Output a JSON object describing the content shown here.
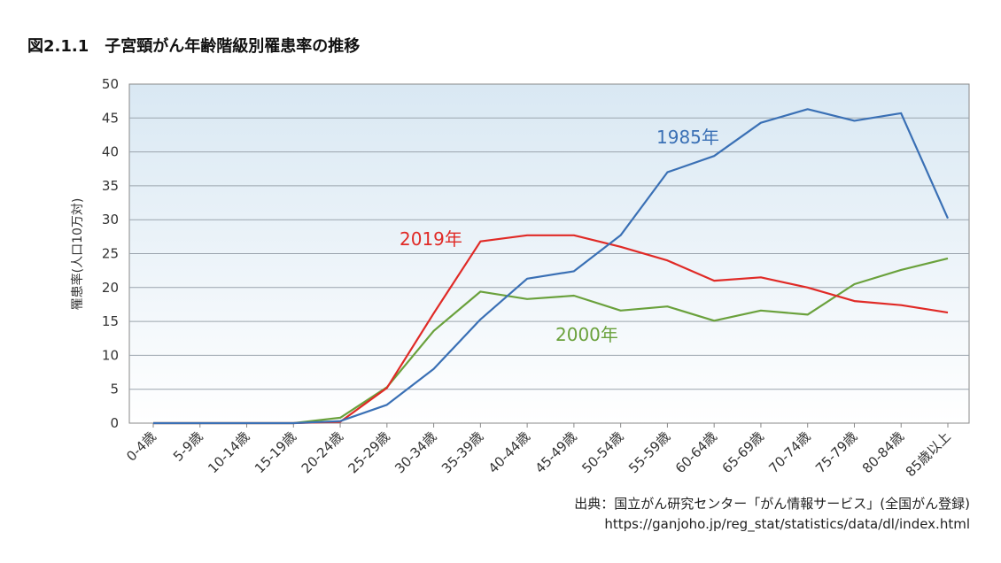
{
  "title": "図2.1.1　子宮頸がん年齢階級別罹患率の推移",
  "source": {
    "line1": "出典：国立がん研究センター「がん情報サービス」(全国がん登録)",
    "line2": "https://ganjoho.jp/reg_stat/statistics/data/dl/index.html"
  },
  "colors": {
    "s1985": "#3a70b5",
    "s2019": "#e02a26",
    "s2000": "#6aa13c",
    "grid": "#9aa4ad",
    "bg_top": "#d9e8f3",
    "bg_bottom": "#ffffff"
  },
  "chart_data": {
    "type": "line",
    "title": "図2.1.1　子宮頸がん年齢階級別罹患率の推移",
    "ylabel": "罹患率(人口10万対)",
    "xlabel": "",
    "ylim": [
      0,
      50
    ],
    "yticks": [
      0,
      5,
      10,
      15,
      20,
      25,
      30,
      35,
      40,
      45,
      50
    ],
    "grid": true,
    "categories": [
      "0-4歳",
      "5-9歳",
      "10-14歳",
      "15-19歳",
      "20-24歳",
      "25-29歳",
      "30-34歳",
      "35-39歳",
      "40-44歳",
      "45-49歳",
      "50-54歳",
      "55-59歳",
      "60-64歳",
      "65-69歳",
      "70-74歳",
      "75-79歳",
      "80-84歳",
      "85歳以上"
    ],
    "series": [
      {
        "name": "1985年",
        "color": "#3a70b5",
        "values": [
          0,
          0,
          0,
          0,
          0.3,
          2.7,
          8.0,
          15.3,
          21.3,
          22.4,
          27.7,
          37.0,
          39.4,
          44.3,
          46.3,
          44.6,
          45.7,
          30.2
        ]
      },
      {
        "name": "2019年",
        "color": "#e02a26",
        "values": [
          0,
          0,
          0,
          0,
          0.2,
          5.2,
          16.2,
          26.8,
          27.7,
          27.7,
          26.0,
          24.0,
          21.0,
          21.5,
          20.0,
          18.0,
          17.4,
          16.3
        ]
      },
      {
        "name": "2000年",
        "color": "#6aa13c",
        "values": [
          0,
          0,
          0,
          0,
          0.8,
          5.3,
          13.6,
          19.4,
          18.3,
          18.8,
          16.6,
          17.2,
          15.1,
          16.6,
          16.0,
          20.5,
          22.6,
          24.3
        ]
      }
    ],
    "annotations": [
      "1985年",
      "2019年",
      "2000年"
    ]
  }
}
